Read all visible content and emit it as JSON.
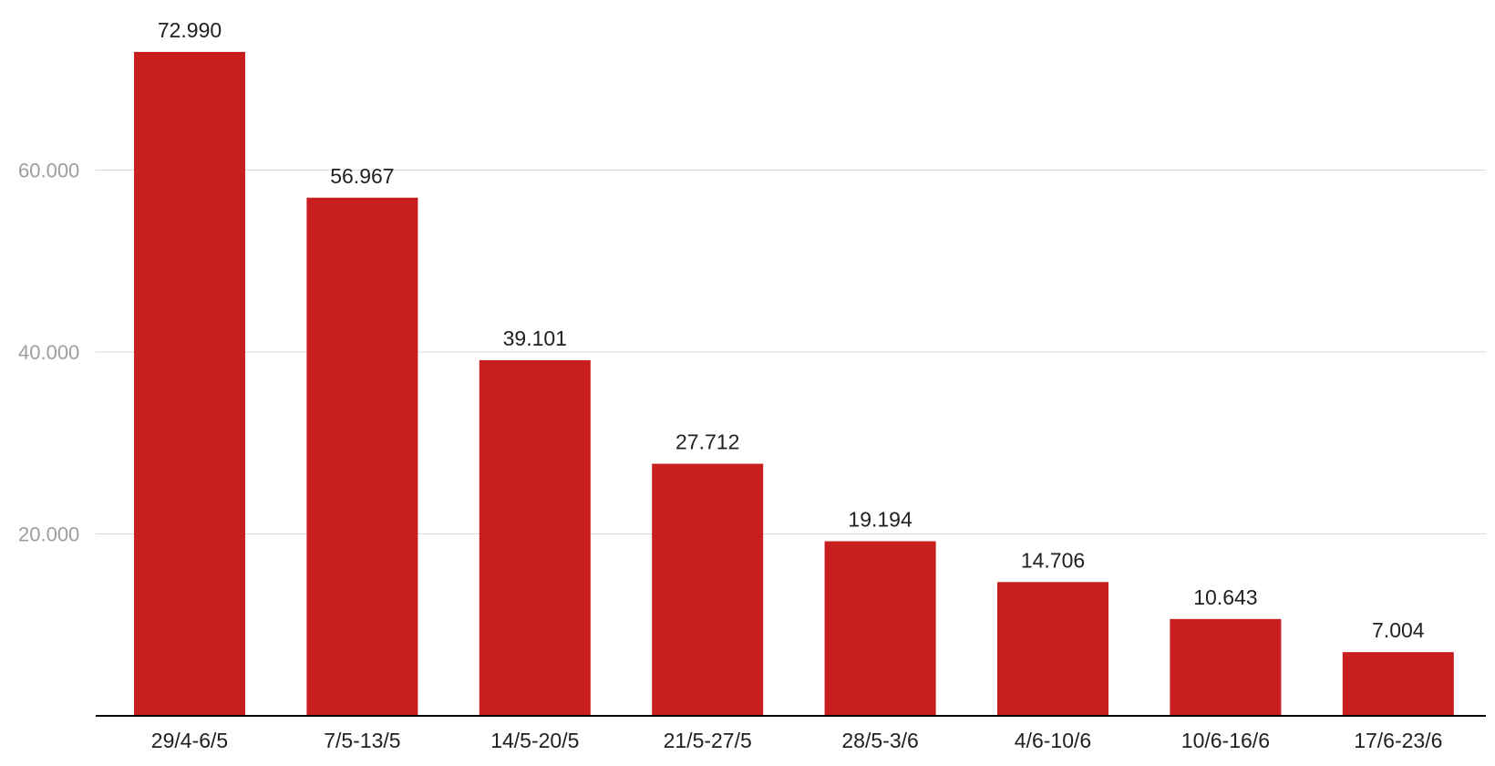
{
  "chart_data": {
    "type": "bar",
    "title": "",
    "xlabel": "",
    "ylabel": "",
    "categories": [
      "29/4-6/5",
      "7/5-13/5",
      "14/5-20/5",
      "21/5-27/5",
      "28/5-3/6",
      "4/6-10/6",
      "10/6-16/6",
      "17/6-23/6"
    ],
    "values": [
      72990,
      56967,
      39101,
      27712,
      19194,
      14706,
      10643,
      7004
    ],
    "value_labels": [
      "72.990",
      "56.967",
      "39.101",
      "27.712",
      "19.194",
      "14.706",
      "10.643",
      "7.004"
    ],
    "ylim": [
      0,
      80000
    ],
    "y_ticks": [
      20000,
      40000,
      60000
    ],
    "y_tick_labels": [
      "20.000",
      "40.000",
      "60.000"
    ],
    "grid": true,
    "legend": "none",
    "bar_color": "#c81e1e"
  }
}
